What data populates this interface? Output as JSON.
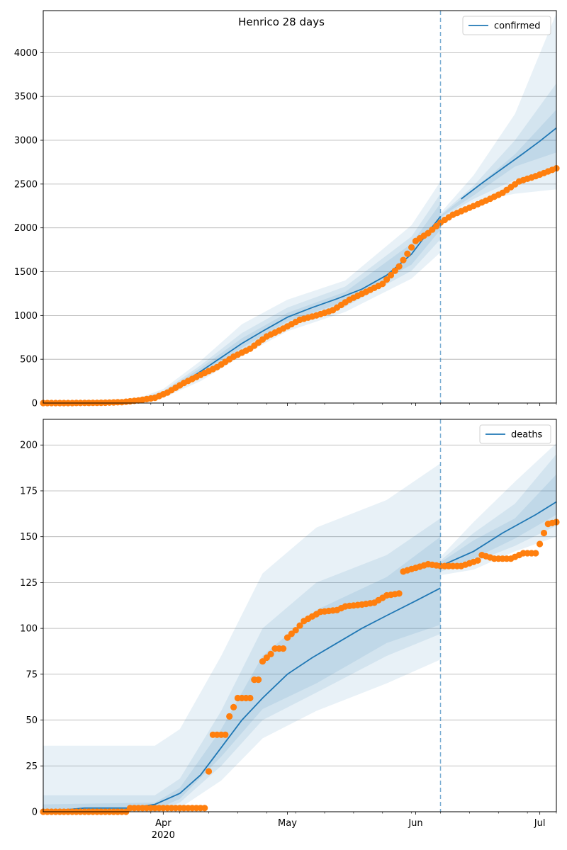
{
  "figure": {
    "title": "Henrico 28 days"
  },
  "colors": {
    "line": "#1f77b4",
    "points": "#ff7f0e",
    "band": "#1f77b4",
    "grid": "#b0b0b0",
    "divider": "#1f77b4"
  },
  "chart_data": [
    {
      "type": "line",
      "name": "confirmed-panel",
      "title": "Henrico 28 days",
      "xlabel": "",
      "ylabel": "",
      "x_range": [
        "2020-03-03",
        "2020-07-05"
      ],
      "ylim": [
        0,
        4480
      ],
      "yticks": [
        0,
        500,
        1000,
        1500,
        2000,
        2500,
        3000,
        3500,
        4000
      ],
      "xticks": [
        {
          "date": "2020-04-01",
          "label": "Apr"
        },
        {
          "date": "2020-05-01",
          "label": "May"
        },
        {
          "date": "2020-06-01",
          "label": "Jun"
        },
        {
          "date": "2020-07-01",
          "label": "Jul"
        }
      ],
      "year_label": "2020",
      "forecast_start": "2020-06-07",
      "grid": "y",
      "legend": {
        "placement": "top-right",
        "entries": [
          "confirmed"
        ]
      },
      "series": [
        {
          "name": "confirmed",
          "kind": "model-median",
          "points": [
            [
              "2020-03-03",
              0
            ],
            [
              "2020-03-15",
              3
            ],
            [
              "2020-03-22",
              12
            ],
            [
              "2020-03-28",
              40
            ],
            [
              "2020-04-01",
              100
            ],
            [
              "2020-04-05",
              210
            ],
            [
              "2020-04-10",
              360
            ],
            [
              "2020-04-15",
              520
            ],
            [
              "2020-04-20",
              680
            ],
            [
              "2020-04-25",
              820
            ],
            [
              "2020-05-01",
              980
            ],
            [
              "2020-05-07",
              1090
            ],
            [
              "2020-05-13",
              1190
            ],
            [
              "2020-05-19",
              1300
            ],
            [
              "2020-05-25",
              1460
            ],
            [
              "2020-05-31",
              1700
            ],
            [
              "2020-06-04",
              1950
            ],
            [
              "2020-06-07",
              2130
            ],
            [
              "2020-06-12",
              2330
            ],
            [
              "2020-06-17",
              2510
            ],
            [
              "2020-06-22",
              2680
            ],
            [
              "2020-06-27",
              2850
            ],
            [
              "2020-07-01",
              2990
            ],
            [
              "2020-07-05",
              3140
            ]
          ]
        },
        {
          "name": "confirmed-observed",
          "kind": "observed",
          "points": [
            [
              "2020-03-03",
              0
            ],
            [
              "2020-03-10",
              0
            ],
            [
              "2020-03-17",
              3
            ],
            [
              "2020-03-22",
              10
            ],
            [
              "2020-03-26",
              30
            ],
            [
              "2020-03-30",
              60
            ],
            [
              "2020-04-02",
              120
            ],
            [
              "2020-04-06",
              230
            ],
            [
              "2020-04-10",
              320
            ],
            [
              "2020-04-14",
              410
            ],
            [
              "2020-04-18",
              530
            ],
            [
              "2020-04-22",
              620
            ],
            [
              "2020-04-26",
              760
            ],
            [
              "2020-04-30",
              850
            ],
            [
              "2020-05-04",
              950
            ],
            [
              "2020-05-08",
              1000
            ],
            [
              "2020-05-12",
              1060
            ],
            [
              "2020-05-16",
              1180
            ],
            [
              "2020-05-20",
              1270
            ],
            [
              "2020-05-24",
              1360
            ],
            [
              "2020-05-28",
              1560
            ],
            [
              "2020-06-01",
              1850
            ],
            [
              "2020-06-04",
              1940
            ],
            [
              "2020-06-07",
              2060
            ],
            [
              "2020-06-10",
              2150
            ],
            [
              "2020-06-14",
              2230
            ],
            [
              "2020-06-18",
              2310
            ],
            [
              "2020-06-22",
              2400
            ],
            [
              "2020-06-26",
              2530
            ],
            [
              "2020-06-30",
              2590
            ],
            [
              "2020-07-05",
              2680
            ]
          ]
        }
      ],
      "bands": [
        {
          "level": "outer",
          "points": [
            [
              "2020-03-03",
              0,
              0
            ],
            [
              "2020-03-25",
              5,
              40
            ],
            [
              "2020-04-01",
              60,
              160
            ],
            [
              "2020-04-10",
              250,
              480
            ],
            [
              "2020-04-20",
              540,
              900
            ],
            [
              "2020-05-01",
              820,
              1180
            ],
            [
              "2020-05-15",
              1040,
              1400
            ],
            [
              "2020-05-31",
              1420,
              2030
            ],
            [
              "2020-06-07",
              1720,
              2530
            ],
            [
              "2020-06-07",
              2090,
              2170
            ],
            [
              "2020-06-15",
              2300,
              2600
            ],
            [
              "2020-06-25",
              2390,
              3300
            ],
            [
              "2020-07-05",
              2440,
              4450
            ]
          ]
        },
        {
          "level": "middle",
          "points": [
            [
              "2020-03-03",
              0,
              0
            ],
            [
              "2020-03-25",
              8,
              30
            ],
            [
              "2020-04-01",
              75,
              135
            ],
            [
              "2020-04-10",
              290,
              430
            ],
            [
              "2020-04-20",
              590,
              800
            ],
            [
              "2020-05-01",
              880,
              1090
            ],
            [
              "2020-05-15",
              1100,
              1330
            ],
            [
              "2020-05-31",
              1510,
              1900
            ],
            [
              "2020-06-07",
              1870,
              2390
            ],
            [
              "2020-06-07",
              2110,
              2150
            ],
            [
              "2020-06-15",
              2330,
              2480
            ],
            [
              "2020-06-25",
              2550,
              3000
            ],
            [
              "2020-07-05",
              2650,
              3650
            ]
          ]
        },
        {
          "level": "inner",
          "points": [
            [
              "2020-03-03",
              0,
              0
            ],
            [
              "2020-03-25",
              10,
              24
            ],
            [
              "2020-04-01",
              85,
              118
            ],
            [
              "2020-04-10",
              320,
              400
            ],
            [
              "2020-04-20",
              630,
              740
            ],
            [
              "2020-05-01",
              930,
              1030
            ],
            [
              "2020-05-15",
              1160,
              1270
            ],
            [
              "2020-05-31",
              1580,
              1820
            ],
            [
              "2020-06-07",
              1980,
              2280
            ],
            [
              "2020-06-07",
              2120,
              2140
            ],
            [
              "2020-06-15",
              2370,
              2440
            ],
            [
              "2020-06-25",
              2700,
              2840
            ],
            [
              "2020-07-05",
              2860,
              3350
            ]
          ]
        }
      ]
    },
    {
      "type": "line",
      "name": "deaths-panel",
      "title": "",
      "xlabel": "",
      "ylabel": "",
      "x_range": [
        "2020-03-03",
        "2020-07-05"
      ],
      "ylim": [
        0,
        214
      ],
      "yticks": [
        0,
        25,
        50,
        75,
        100,
        125,
        150,
        175,
        200
      ],
      "xticks": [
        {
          "date": "2020-04-01",
          "label": "Apr"
        },
        {
          "date": "2020-05-01",
          "label": "May"
        },
        {
          "date": "2020-06-01",
          "label": "Jun"
        },
        {
          "date": "2020-07-01",
          "label": "Jul"
        }
      ],
      "year_label": "2020",
      "forecast_start": "2020-06-07",
      "grid": "y",
      "legend": {
        "placement": "top-right",
        "entries": [
          "deaths"
        ]
      },
      "series": [
        {
          "name": "deaths",
          "kind": "model-median",
          "points": [
            [
              "2020-03-03",
              0
            ],
            [
              "2020-03-13",
              2
            ],
            [
              "2020-03-24",
              2
            ],
            [
              "2020-03-30",
              4
            ],
            [
              "2020-04-05",
              10
            ],
            [
              "2020-04-10",
              20
            ],
            [
              "2020-04-15",
              35
            ],
            [
              "2020-04-20",
              50
            ],
            [
              "2020-04-25",
              62
            ],
            [
              "2020-05-01",
              75
            ],
            [
              "2020-05-07",
              84
            ],
            [
              "2020-05-13",
              92
            ],
            [
              "2020-05-19",
              100
            ],
            [
              "2020-05-25",
              107
            ],
            [
              "2020-06-01",
              115
            ],
            [
              "2020-06-07",
              122
            ],
            [
              "2020-06-07",
              134
            ],
            [
              "2020-06-15",
              142
            ],
            [
              "2020-06-22",
              152
            ],
            [
              "2020-06-30",
              162
            ],
            [
              "2020-07-05",
              169
            ]
          ]
        },
        {
          "name": "deaths-observed",
          "kind": "observed",
          "points": [
            [
              "2020-03-03",
              0
            ],
            [
              "2020-03-23",
              0
            ],
            [
              "2020-03-24",
              2
            ],
            [
              "2020-04-11",
              2
            ],
            [
              "2020-04-13",
              42
            ],
            [
              "2020-04-16",
              42
            ],
            [
              "2020-04-17",
              52
            ],
            [
              "2020-04-18",
              57
            ],
            [
              "2020-04-19",
              62
            ],
            [
              "2020-04-22",
              62
            ],
            [
              "2020-04-23",
              72
            ],
            [
              "2020-04-24",
              72
            ],
            [
              "2020-04-25",
              82
            ],
            [
              "2020-04-27",
              86
            ],
            [
              "2020-04-28",
              89
            ],
            [
              "2020-04-30",
              89
            ],
            [
              "2020-05-01",
              95
            ],
            [
              "2020-05-03",
              99
            ],
            [
              "2020-05-05",
              104
            ],
            [
              "2020-05-09",
              109
            ],
            [
              "2020-05-13",
              110
            ],
            [
              "2020-05-15",
              112
            ],
            [
              "2020-05-19",
              113
            ],
            [
              "2020-05-22",
              114
            ],
            [
              "2020-05-25",
              118
            ],
            [
              "2020-05-28",
              119
            ],
            [
              "2020-05-29",
              131
            ],
            [
              "2020-06-01",
              133
            ],
            [
              "2020-06-04",
              135
            ],
            [
              "2020-06-07",
              134
            ],
            [
              "2020-06-12",
              134
            ],
            [
              "2020-06-16",
              137
            ],
            [
              "2020-06-17",
              140
            ],
            [
              "2020-06-20",
              138
            ],
            [
              "2020-06-24",
              138
            ],
            [
              "2020-06-27",
              141
            ],
            [
              "2020-06-30",
              141
            ],
            [
              "2020-07-01",
              146
            ],
            [
              "2020-07-02",
              152
            ],
            [
              "2020-07-03",
              157
            ],
            [
              "2020-07-05",
              158
            ]
          ]
        }
      ],
      "bands": [
        {
          "level": "outer",
          "points": [
            [
              "2020-03-03",
              0,
              36
            ],
            [
              "2020-03-30",
              0,
              36
            ],
            [
              "2020-04-05",
              2,
              45
            ],
            [
              "2020-04-15",
              17,
              85
            ],
            [
              "2020-04-25",
              40,
              130
            ],
            [
              "2020-05-08",
              55,
              155
            ],
            [
              "2020-05-25",
              70,
              170
            ],
            [
              "2020-06-07",
              83,
              190
            ],
            [
              "2020-06-07",
              129,
              139
            ],
            [
              "2020-06-15",
              132,
              158
            ],
            [
              "2020-06-25",
              142,
              180
            ],
            [
              "2020-07-05",
              150,
              201
            ]
          ]
        },
        {
          "level": "middle",
          "points": [
            [
              "2020-03-03",
              0,
              9
            ],
            [
              "2020-03-30",
              0,
              9
            ],
            [
              "2020-04-05",
              5,
              18
            ],
            [
              "2020-04-15",
              25,
              55
            ],
            [
              "2020-04-25",
              50,
              100
            ],
            [
              "2020-05-08",
              65,
              125
            ],
            [
              "2020-05-25",
              85,
              140
            ],
            [
              "2020-06-07",
              97,
              160
            ],
            [
              "2020-06-07",
              131,
              137
            ],
            [
              "2020-06-15",
              136,
              152
            ],
            [
              "2020-06-25",
              145,
              168
            ],
            [
              "2020-07-05",
              156,
              195
            ]
          ]
        },
        {
          "level": "inner",
          "points": [
            [
              "2020-03-03",
              0,
              4
            ],
            [
              "2020-03-30",
              1,
              5
            ],
            [
              "2020-04-05",
              7,
              13
            ],
            [
              "2020-04-15",
              30,
              45
            ],
            [
              "2020-04-25",
              56,
              85
            ],
            [
              "2020-05-08",
              70,
              110
            ],
            [
              "2020-05-25",
              92,
              128
            ],
            [
              "2020-06-07",
              102,
              150
            ],
            [
              "2020-06-07",
              132,
              136
            ],
            [
              "2020-06-15",
              138,
              148
            ],
            [
              "2020-06-25",
              149,
              160
            ],
            [
              "2020-07-05",
              162,
              184
            ]
          ]
        }
      ]
    }
  ]
}
